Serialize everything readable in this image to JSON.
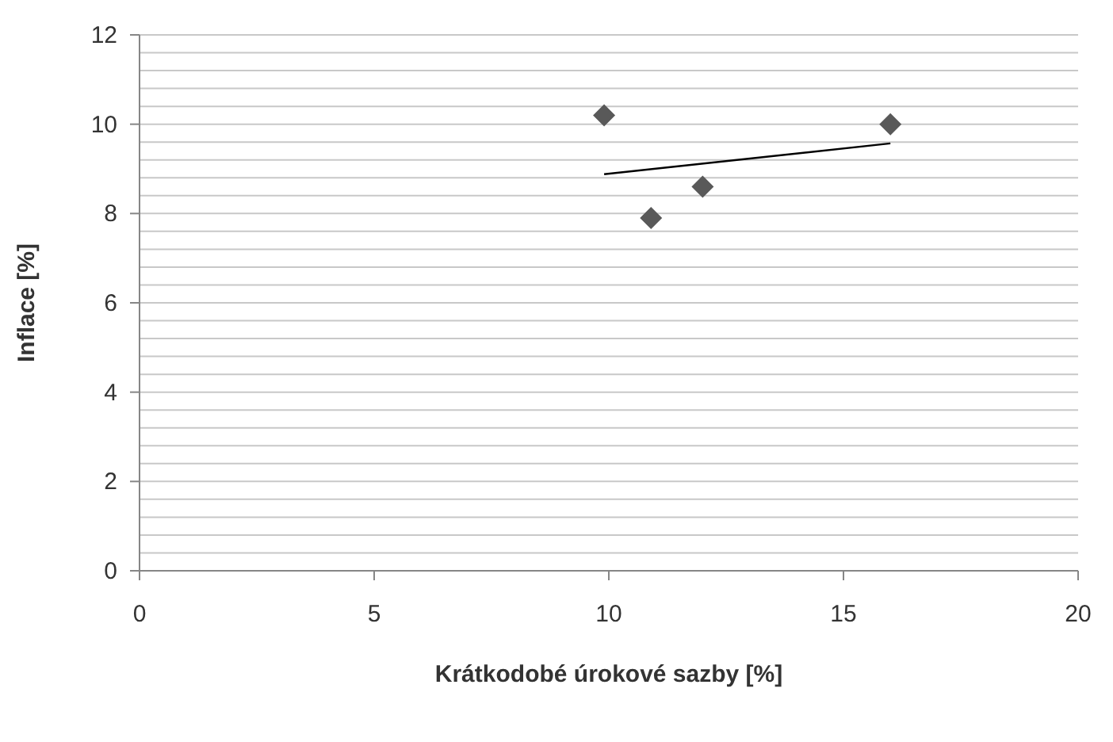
{
  "chart_data": {
    "type": "scatter",
    "xlabel": "Krátkodobé úrokové sazby [%]",
    "ylabel": "Inflace [%]",
    "xlim": [
      0,
      20
    ],
    "xticks": [
      0,
      5,
      10,
      15,
      20
    ],
    "ylim": [
      0,
      12
    ],
    "yticks": [
      0,
      {
        "value": 0.4,
        "label": null
      },
      {
        "value": 0.8,
        "label": null
      },
      {
        "value": 1.2,
        "label": null
      },
      {
        "value": 1.6,
        "label": null
      },
      2,
      {
        "value": 2.4,
        "label": null
      },
      {
        "value": 2.8,
        "label": null
      },
      {
        "value": 3.2,
        "label": null
      },
      {
        "value": 3.6,
        "label": null
      },
      4,
      {
        "value": 4.4,
        "label": null
      },
      {
        "value": 4.8,
        "label": null
      },
      {
        "value": 5.2,
        "label": null
      },
      {
        "value": 5.6,
        "label": null
      },
      6,
      {
        "value": 6.4,
        "label": null
      },
      {
        "value": 6.8,
        "label": null
      },
      {
        "value": 7.2,
        "label": null
      },
      {
        "value": 7.6,
        "label": null
      },
      8,
      {
        "value": 8.4,
        "label": null
      },
      {
        "value": 8.8,
        "label": null
      },
      {
        "value": 9.2,
        "label": null
      },
      {
        "value": 9.6,
        "label": null
      },
      10,
      {
        "value": 10.4,
        "label": null
      },
      {
        "value": 10.8,
        "label": null
      },
      {
        "value": 11.2,
        "label": null
      },
      {
        "value": 11.6,
        "label": null
      },
      12
    ],
    "grid": "y",
    "legend": false,
    "marker": "diamond",
    "series": [
      {
        "color": "#595959",
        "x": [
          9.9,
          10.9,
          12,
          16
        ],
        "values": [
          10.2,
          7.9,
          8.6,
          10
        ]
      },
      {
        "type": "line",
        "color": "#000000",
        "x": [
          9.9,
          16
        ],
        "values": [
          8.88,
          9.57
        ],
        "marker": "none"
      }
    ]
  }
}
